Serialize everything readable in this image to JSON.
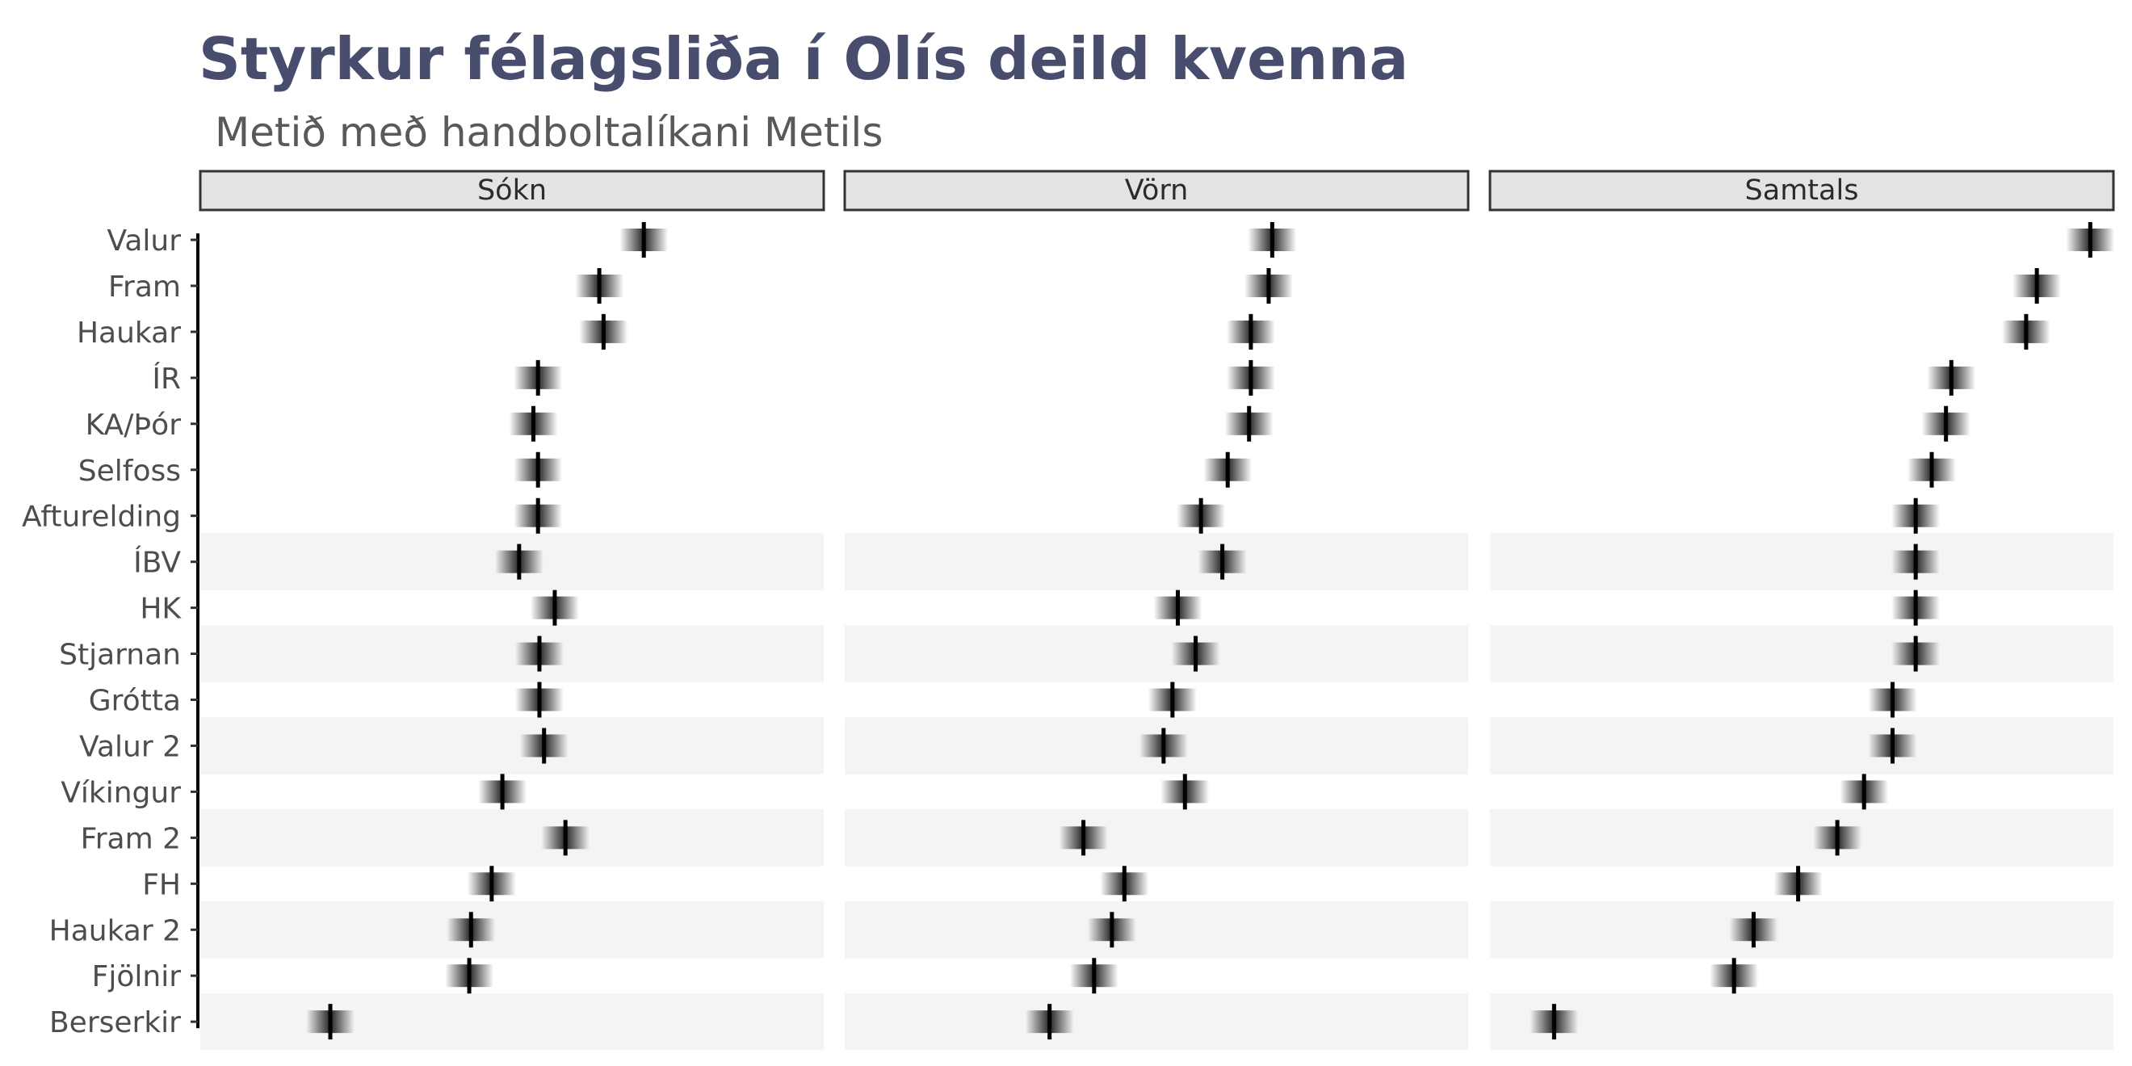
{
  "chart_data": {
    "type": "interval",
    "title": "Styrkur félagsliða í Olís deild kvenna",
    "subtitle": "Metið með handboltalíkani Metils",
    "panels": [
      "Sókn",
      "Vörn",
      "Samtals"
    ],
    "teams": [
      "Valur",
      "Fram",
      "Haukar",
      "ÍR",
      "KA/Þór",
      "Selfoss",
      "Afturelding",
      "ÍBV",
      "HK",
      "Stjarnan",
      "Grótta",
      "Valur 2",
      "Víkingur",
      "Fram 2",
      "FH",
      "Haukar 2",
      "Fjölnir",
      "Berserkir"
    ],
    "shaded_rows_from": "ÍBV",
    "series": [
      {
        "name": "Sókn",
        "values": [
          0.495,
          0.37,
          0.382,
          0.198,
          0.185,
          0.198,
          0.198,
          0.145,
          0.245,
          0.202,
          0.202,
          0.215,
          0.098,
          0.275,
          0.068,
          0.01,
          0.005,
          -0.385
        ]
      },
      {
        "name": "Vörn",
        "values": [
          0.45,
          0.44,
          0.39,
          0.39,
          0.385,
          0.325,
          0.25,
          0.31,
          0.185,
          0.235,
          0.17,
          0.145,
          0.205,
          -0.08,
          0.035,
          0.0,
          -0.05,
          -0.175
        ]
      },
      {
        "name": "Samtals",
        "values": [
          0.935,
          0.785,
          0.755,
          0.545,
          0.53,
          0.49,
          0.445,
          0.445,
          0.445,
          0.445,
          0.38,
          0.38,
          0.3,
          0.225,
          0.115,
          -0.01,
          -0.065,
          -0.57
        ]
      }
    ],
    "xlim": [
      -0.75,
      1.0
    ],
    "grid": false,
    "legend": "none"
  }
}
